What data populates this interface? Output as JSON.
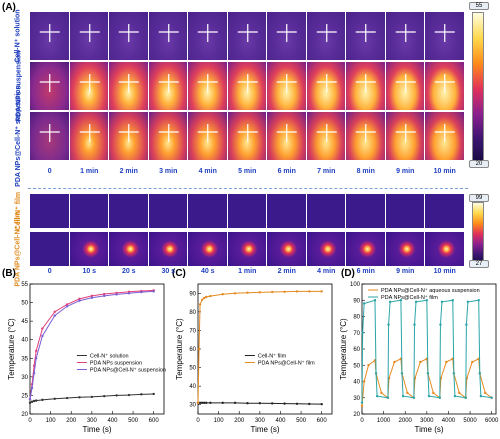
{
  "panelA": {
    "letter": "(A)",
    "rows_top": [
      {
        "label": "Cell-N⁺ solution",
        "kind": "solution"
      },
      {
        "label": "PDA NPs suspension",
        "kind": "pda"
      },
      {
        "label": "PDA NPs@Cell-N⁺ suspension",
        "kind": "combo"
      }
    ],
    "times_top": [
      "0",
      "1 min",
      "2 min",
      "3 min",
      "4 min",
      "5 min",
      "6 min",
      "7 min",
      "8 min",
      "9 min",
      "10 min"
    ],
    "rows_bottom": [
      {
        "label": "Cell-N⁺ film",
        "kind": "film"
      },
      {
        "label": "PDA NPs@Cell-N⁺ film",
        "kind": "spot"
      }
    ],
    "times_bottom": [
      "0",
      "10 s",
      "20 s",
      "30 s",
      "40 s",
      "1 min",
      "2 min",
      "4 min",
      "6 min",
      "9 min",
      "10 min"
    ],
    "colorbar_top": {
      "max": "55",
      "min": "20"
    },
    "colorbar_bottom": {
      "max": "99",
      "min": "27"
    }
  },
  "charts": {
    "B": {
      "letter": "(B)",
      "ylabel": "Temperature (°C)",
      "xlabel": "Time (s)"
    },
    "C": {
      "letter": "(C)",
      "ylabel": "Temperature (°C)",
      "xlabel": "Time (s)"
    },
    "D": {
      "letter": "(D)",
      "ylabel": "Temperature (°C)",
      "xlabel": "Time (s)"
    }
  },
  "chart_data": [
    {
      "type": "line",
      "xlabel": "Time (s)",
      "ylabel": "Temperature (°C)",
      "xlim": [
        0,
        650
      ],
      "ylim": [
        20,
        55
      ],
      "xticks": [
        0,
        100,
        200,
        300,
        400,
        500,
        600
      ],
      "yticks": [
        20,
        25,
        30,
        35,
        40,
        45,
        50,
        55
      ],
      "legend": "center-right",
      "series": [
        {
          "name": "Cell-N⁺ solution",
          "color": "#333333",
          "x": [
            0,
            10,
            20,
            30,
            60,
            120,
            180,
            240,
            300,
            360,
            420,
            480,
            540,
            600
          ],
          "y": [
            23,
            23.3,
            23.5,
            23.6,
            23.8,
            24.1,
            24.3,
            24.5,
            24.6,
            24.8,
            25,
            25.1,
            25.3,
            25.4
          ]
        },
        {
          "name": "PDA NPs suspension",
          "color": "#e0407a",
          "x": [
            0,
            10,
            20,
            30,
            60,
            120,
            180,
            240,
            300,
            360,
            420,
            480,
            540,
            600
          ],
          "y": [
            24,
            28,
            33,
            37,
            43,
            47.5,
            49.5,
            51,
            51.8,
            52.3,
            52.6,
            52.9,
            53.1,
            53.3
          ]
        },
        {
          "name": "PDA NPs@Cell-N⁺ suspension",
          "color": "#7b5fd6",
          "x": [
            0,
            10,
            20,
            30,
            60,
            120,
            180,
            240,
            300,
            360,
            420,
            480,
            540,
            600
          ],
          "y": [
            24,
            27,
            31,
            35,
            41,
            46.5,
            49,
            50.5,
            51.3,
            51.8,
            52.2,
            52.5,
            52.8,
            53
          ]
        }
      ]
    },
    {
      "type": "line",
      "xlabel": "Time (s)",
      "ylabel": "Temperature (°C)",
      "xlim": [
        0,
        650
      ],
      "ylim": [
        25,
        95
      ],
      "xticks": [
        0,
        100,
        200,
        300,
        400,
        500,
        600
      ],
      "yticks": [
        30,
        40,
        50,
        60,
        70,
        80,
        90
      ],
      "legend": "center-right",
      "series": [
        {
          "name": "Cell-N⁺ film",
          "color": "#222222",
          "x": [
            0,
            10,
            20,
            30,
            40,
            60,
            120,
            180,
            240,
            300,
            360,
            420,
            480,
            540,
            600
          ],
          "y": [
            31,
            31,
            31,
            31,
            31,
            31,
            31,
            31,
            30.8,
            30.8,
            30.7,
            30.6,
            30.5,
            30.4,
            30.3
          ]
        },
        {
          "name": "PDA NPs@Cell-N⁺ film",
          "color": "#e58a22",
          "x": [
            0,
            5,
            10,
            20,
            30,
            40,
            60,
            120,
            180,
            240,
            300,
            360,
            420,
            480,
            540,
            600
          ],
          "y": [
            31,
            60,
            84,
            86.5,
            87.5,
            88,
            88.5,
            89.5,
            90,
            90.3,
            90.5,
            90.7,
            90.8,
            91,
            91,
            91
          ]
        }
      ]
    },
    {
      "type": "line",
      "xlabel": "Time (s)",
      "ylabel": "Temperature (°C)",
      "xlim": [
        0,
        6200
      ],
      "ylim": [
        20,
        100
      ],
      "xticks": [
        0,
        1000,
        2000,
        3000,
        4000,
        5000,
        6000
      ],
      "yticks": [
        20,
        30,
        40,
        50,
        60,
        70,
        80,
        90,
        100
      ],
      "legend": "top",
      "series": [
        {
          "name": "PDA NPs@Cell-N⁺ aqueous suspension",
          "color": "#e58a22",
          "x": [
            0,
            100,
            300,
            600,
            650,
            900,
            1200,
            1250,
            1500,
            1800,
            1850,
            2100,
            2400,
            2450,
            2700,
            3000,
            3050,
            3300,
            3600,
            3650,
            3900,
            4200,
            4250,
            4500,
            4800,
            4850,
            5100,
            5400,
            5450,
            5700,
            6000
          ],
          "y": [
            25,
            40,
            50,
            53,
            45,
            33,
            30,
            42,
            52,
            54,
            45,
            33,
            30,
            42,
            52,
            54,
            45,
            33,
            30,
            42,
            52,
            54,
            45,
            33,
            30,
            42,
            52,
            54,
            45,
            33,
            30
          ]
        },
        {
          "name": "PDA NPs@Cell-N⁺ film",
          "color": "#2aa5a8",
          "x": [
            0,
            30,
            100,
            600,
            650,
            700,
            1200,
            1230,
            1300,
            1800,
            1850,
            1900,
            2400,
            2430,
            2500,
            3000,
            3050,
            3100,
            3600,
            3630,
            3700,
            4200,
            4250,
            4300,
            4800,
            4830,
            4900,
            5400,
            5450,
            5500,
            6000
          ],
          "y": [
            27,
            70,
            88,
            90,
            45,
            31,
            30,
            75,
            89,
            90,
            45,
            31,
            30,
            75,
            89,
            90,
            45,
            31,
            30,
            75,
            89,
            90,
            45,
            31,
            30,
            75,
            89,
            90,
            45,
            31,
            30
          ]
        }
      ]
    }
  ]
}
